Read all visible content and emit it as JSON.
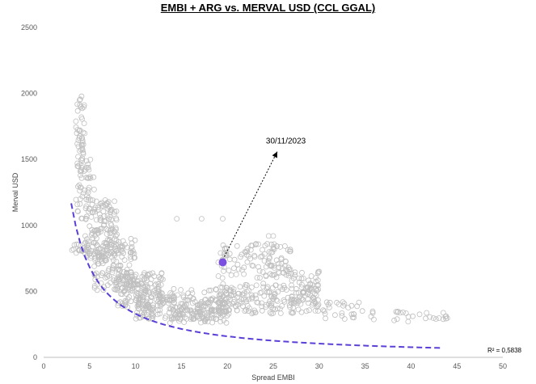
{
  "chart_data": {
    "type": "scatter",
    "title": "EMBI + ARG vs. MERVAL USD (CCL GGAL)",
    "xlabel": "Spread EMBI",
    "ylabel": "Merval USD",
    "xlim": [
      0,
      50
    ],
    "ylim": [
      0,
      2500
    ],
    "xticks": [
      "0",
      "5",
      "10",
      "15",
      "20",
      "25",
      "30",
      "35",
      "40",
      "45",
      "50"
    ],
    "yticks": [
      "0",
      "500",
      "1000",
      "1500",
      "2000",
      "2500"
    ],
    "grid": false,
    "colors": {
      "points": "#bfbfbf",
      "trend": "#5b3fd6",
      "highlight": "#7b4fe0"
    },
    "highlight_point": {
      "label": "30/11/2023",
      "x": 19.5,
      "y": 720
    },
    "annotation": {
      "text": "30/11/2023",
      "x": 24.2,
      "y": 1620
    },
    "trendline": {
      "style": "dashed",
      "type": "power",
      "r2_label": "R² = 0,5838",
      "x_range": [
        3,
        43.3
      ],
      "a": 3700,
      "b": -1.05
    },
    "scatter_clusters": [
      {
        "xr": [
          3.5,
          4.5
        ],
        "yr": [
          1450,
          1980
        ],
        "n": 45
      },
      {
        "xr": [
          3.5,
          5.5
        ],
        "yr": [
          1050,
          1500
        ],
        "n": 50
      },
      {
        "xr": [
          3.0,
          5.0
        ],
        "yr": [
          780,
          860
        ],
        "n": 18
      },
      {
        "xr": [
          4.5,
          8.0
        ],
        "yr": [
          750,
          1200
        ],
        "n": 140
      },
      {
        "xr": [
          5.5,
          10.0
        ],
        "yr": [
          500,
          900
        ],
        "n": 150
      },
      {
        "xr": [
          8.0,
          13.0
        ],
        "yr": [
          380,
          650
        ],
        "n": 150
      },
      {
        "xr": [
          10.0,
          20.0
        ],
        "yr": [
          290,
          450
        ],
        "n": 190
      },
      {
        "xr": [
          13.0,
          20.0
        ],
        "yr": [
          260,
          520
        ],
        "n": 80
      },
      {
        "xr": [
          19.0,
          30.0
        ],
        "yr": [
          330,
          560
        ],
        "n": 190
      },
      {
        "xr": [
          19.0,
          27.0
        ],
        "yr": [
          600,
          860
        ],
        "n": 90
      },
      {
        "xr": [
          24.0,
          27.0
        ],
        "yr": [
          620,
          760
        ],
        "n": 30
      },
      {
        "xr": [
          27.0,
          30.0
        ],
        "yr": [
          400,
          650
        ],
        "n": 40
      },
      {
        "xr": [
          30.0,
          35.0
        ],
        "yr": [
          280,
          420
        ],
        "n": 25
      },
      {
        "xr": [
          33.0,
          44.0
        ],
        "yr": [
          270,
          350
        ],
        "n": 30
      }
    ],
    "scatter_points": [
      {
        "x": 14.5,
        "y": 1050
      },
      {
        "x": 17.2,
        "y": 1050
      },
      {
        "x": 19.5,
        "y": 1050
      },
      {
        "x": 24.5,
        "y": 920
      },
      {
        "x": 25.0,
        "y": 920
      },
      {
        "x": 30.0,
        "y": 650
      }
    ]
  }
}
